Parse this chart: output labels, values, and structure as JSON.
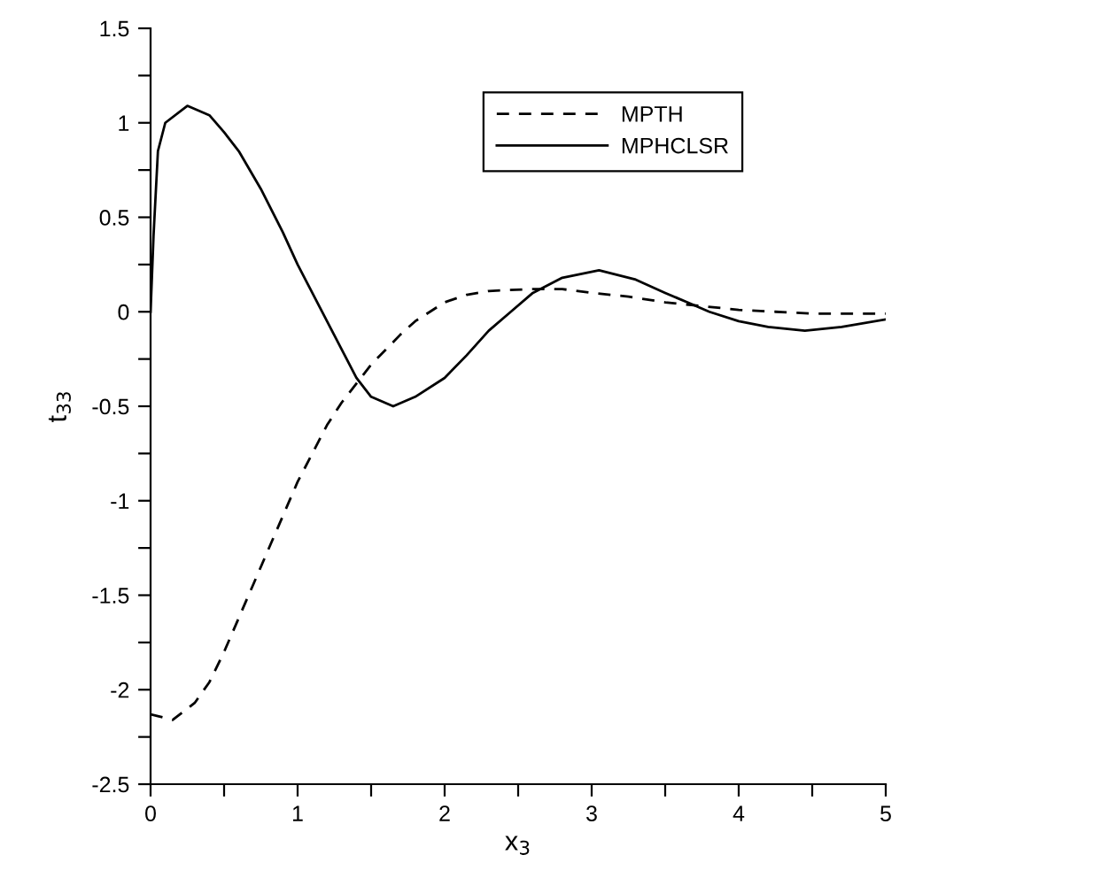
{
  "chart_data": {
    "type": "line",
    "xlabel": "x$_{3}$",
    "ylabel": "t$_{33}$",
    "xlim": [
      0,
      5
    ],
    "ylim": [
      -2.5,
      1.5
    ],
    "xticks": [
      0,
      {
        "value": 0.5,
        "label": null
      },
      1,
      {
        "value": 1.5,
        "label": null
      },
      2,
      {
        "value": 2.5,
        "label": null
      },
      3,
      {
        "value": 3.5,
        "label": null
      },
      4,
      {
        "value": 4.5,
        "label": null
      },
      5
    ],
    "yticks": [
      -2.5,
      {
        "value": -2.25,
        "label": null
      },
      -2,
      {
        "value": -1.75,
        "label": null
      },
      -1.5,
      {
        "value": -1.25,
        "label": null
      },
      -1,
      {
        "value": -0.75,
        "label": null
      },
      -0.5,
      {
        "value": -0.25,
        "label": null
      },
      0,
      {
        "value": 0.25,
        "label": null
      },
      0.5,
      {
        "value": 0.75,
        "label": null
      },
      1,
      {
        "value": 1.25,
        "label": null
      },
      1.5
    ],
    "grid": false,
    "legend": "top right",
    "marker": "none",
    "series": [
      {
        "name": "MPTH",
        "color": "#000000",
        "line_style": "dashed",
        "x": [
          0,
          0.05,
          0.15,
          0.3,
          0.4,
          0.5,
          0.6,
          0.75,
          0.9,
          1.0,
          1.1,
          1.2,
          1.3,
          1.4,
          1.5,
          1.6,
          1.7,
          1.8,
          1.9,
          2.0,
          2.15,
          2.3,
          2.6,
          2.8,
          3.0,
          3.25,
          3.5,
          3.75,
          4.0,
          4.25,
          4.5,
          5.0
        ],
        "values": [
          -2.13,
          -2.14,
          -2.16,
          -2.07,
          -1.96,
          -1.8,
          -1.62,
          -1.35,
          -1.08,
          -0.9,
          -0.75,
          -0.6,
          -0.48,
          -0.38,
          -0.28,
          -0.2,
          -0.12,
          -0.05,
          0.0,
          0.05,
          0.09,
          0.11,
          0.12,
          0.12,
          0.1,
          0.08,
          0.05,
          0.03,
          0.01,
          0.0,
          -0.01,
          -0.01
        ]
      },
      {
        "name": "MPHCLSR",
        "color": "#000000",
        "line_style": "solid",
        "x": [
          0,
          0.02,
          0.05,
          0.1,
          0.25,
          0.4,
          0.5,
          0.6,
          0.75,
          0.9,
          1.0,
          1.1,
          1.2,
          1.3,
          1.4,
          1.5,
          1.65,
          1.8,
          2.0,
          2.15,
          2.3,
          2.45,
          2.6,
          2.8,
          3.05,
          3.3,
          3.5,
          3.65,
          3.8,
          4.0,
          4.2,
          4.45,
          4.7,
          5.0
        ],
        "values": [
          0,
          0.4,
          0.85,
          1.0,
          1.09,
          1.04,
          0.95,
          0.85,
          0.65,
          0.42,
          0.25,
          0.1,
          -0.05,
          -0.2,
          -0.35,
          -0.45,
          -0.5,
          -0.45,
          -0.35,
          -0.23,
          -0.1,
          0.0,
          0.1,
          0.18,
          0.22,
          0.17,
          0.1,
          0.05,
          0.0,
          -0.05,
          -0.08,
          -0.1,
          -0.08,
          -0.04
        ]
      }
    ]
  }
}
